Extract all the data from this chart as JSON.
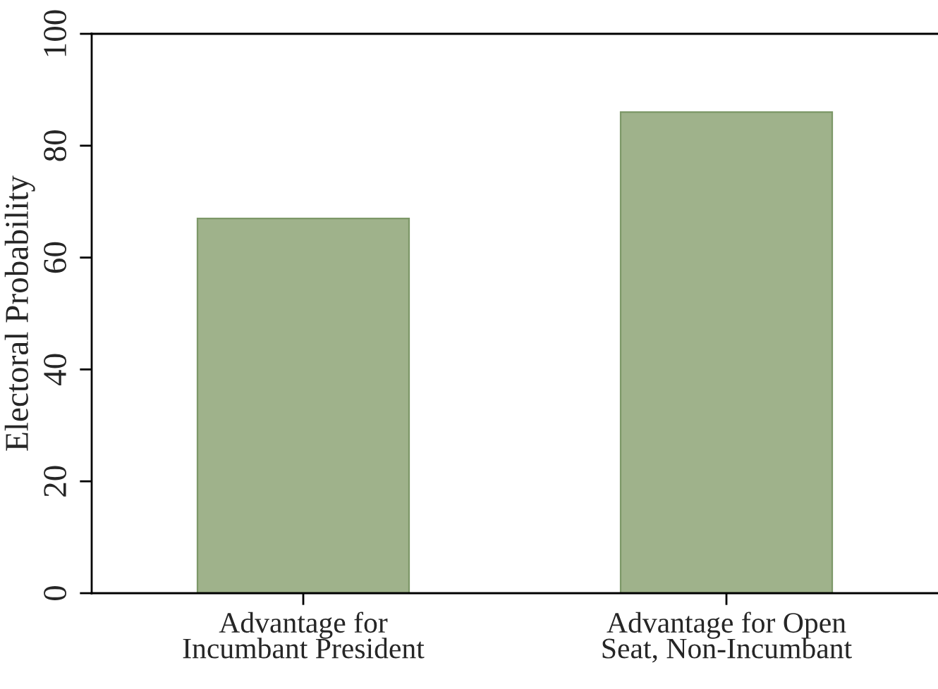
{
  "chart_data": {
    "type": "bar",
    "ylabel": "Electoral Probability",
    "categories": [
      "Advantage for\nIncumbant President",
      "Advantage for Open\nSeat, Non-Incumbant"
    ],
    "values": [
      67,
      86
    ],
    "color": "#9fb28b",
    "ylim": [
      0,
      100
    ],
    "yticks": [
      0,
      20,
      40,
      60,
      80,
      100
    ],
    "grid": false
  }
}
